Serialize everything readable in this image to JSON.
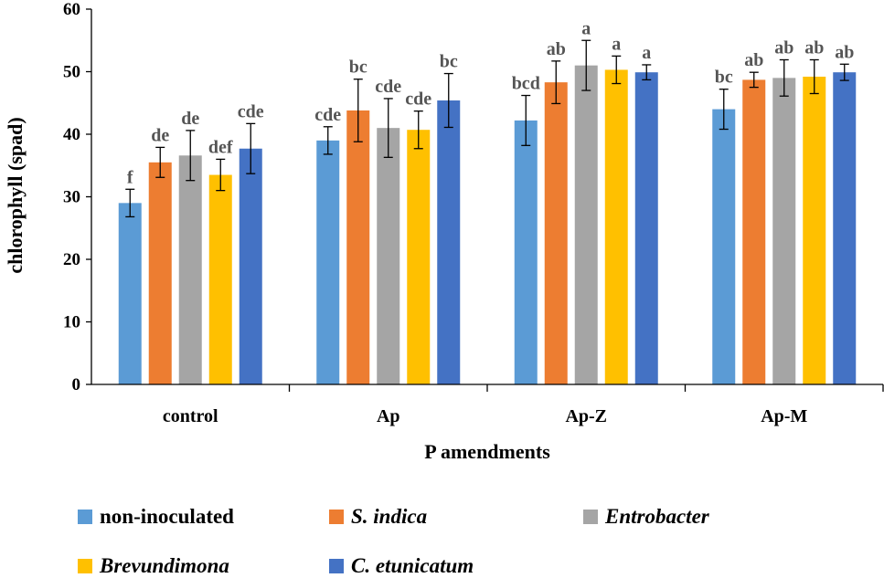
{
  "chart_data": {
    "type": "bar",
    "title": "",
    "xlabel": "P amendments",
    "ylabel": "chlorophyll  (spad)",
    "ylim": [
      0,
      60
    ],
    "yticks": [
      0,
      10,
      20,
      30,
      40,
      50,
      60
    ],
    "categories": [
      "control",
      "Ap",
      "Ap-Z",
      "Ap-M"
    ],
    "grid": false,
    "legend_position": "bottom",
    "series": [
      {
        "name": "non-inoculated",
        "italic": false,
        "color": "#5B9BD5",
        "values": [
          29,
          39,
          42.2,
          44
        ],
        "errors": [
          2.2,
          2.2,
          4,
          3.2
        ],
        "letters": [
          "f",
          "cde",
          "bcd",
          "bc"
        ]
      },
      {
        "name": "S. indica",
        "italic": true,
        "color": "#ED7D31",
        "values": [
          35.5,
          43.8,
          48.3,
          48.7
        ],
        "errors": [
          2.4,
          5,
          3.4,
          1.2
        ],
        "letters": [
          "de",
          "bc",
          "ab",
          "ab"
        ]
      },
      {
        "name": "Entrobacter",
        "italic": true,
        "color": "#A5A5A5",
        "values": [
          36.6,
          41,
          51,
          49
        ],
        "errors": [
          4,
          4.7,
          4,
          2.9
        ],
        "letters": [
          "de",
          "cde",
          "a",
          "ab"
        ]
      },
      {
        "name": "Brevundimona",
        "italic": true,
        "color": "#FFC000",
        "values": [
          33.5,
          40.7,
          50.3,
          49.2
        ],
        "errors": [
          2.5,
          3,
          2.2,
          2.7
        ],
        "letters": [
          "def",
          "cde",
          "a",
          "ab"
        ]
      },
      {
        "name": "C. etunicatum",
        "italic": true,
        "color": "#4472C4",
        "values": [
          37.7,
          45.4,
          49.9,
          49.9
        ],
        "errors": [
          4,
          4.3,
          1.2,
          1.3
        ],
        "letters": [
          "cde",
          "bc",
          "a",
          "ab"
        ]
      }
    ]
  }
}
